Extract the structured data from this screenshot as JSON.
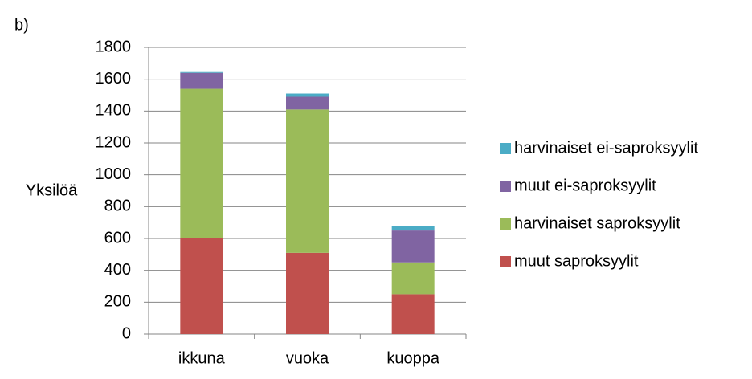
{
  "chart_data": {
    "type": "stacked_bar",
    "title": "b)",
    "y_label": "Yksilöä",
    "categories": [
      "ikkuna",
      "vuoka",
      "kuoppa"
    ],
    "series": [
      {
        "name": "muut saproksyylit",
        "color": "#c0504d",
        "values": [
          600,
          510,
          250
        ]
      },
      {
        "name": "harvinaiset saproksyylit",
        "color": "#9bbb59",
        "values": [
          940,
          900,
          200
        ]
      },
      {
        "name": "muut ei-saproksyylit",
        "color": "#8064a2",
        "values": [
          100,
          80,
          200
        ]
      },
      {
        "name": "harvinaiset ei-saproksyylit",
        "color": "#4bacc6",
        "values": [
          5,
          20,
          30
        ]
      }
    ],
    "ylim": [
      0,
      1800
    ],
    "yticks": [
      0,
      200,
      400,
      600,
      800,
      1000,
      1200,
      1400,
      1600,
      1800
    ],
    "grid": true
  }
}
